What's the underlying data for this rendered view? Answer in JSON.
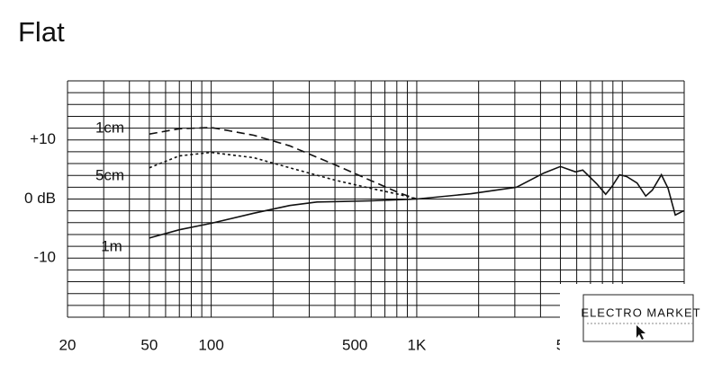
{
  "chart_data": {
    "type": "line",
    "title": "Flat",
    "xscale": "log",
    "xlim": [
      20,
      20000
    ],
    "ylim": [
      -20,
      20
    ],
    "xticks": [
      20,
      50,
      100,
      500,
      {
        "value": 1000,
        "label": "1K"
      },
      {
        "value": 5000,
        "label": "5"
      }
    ],
    "xgrid": [
      20,
      30,
      40,
      50,
      60,
      70,
      80,
      90,
      100,
      200,
      300,
      400,
      500,
      600,
      700,
      800,
      900,
      1000,
      2000,
      3000,
      4000,
      5000,
      6000,
      7000,
      8000,
      9000,
      10000,
      20000
    ],
    "yticks": [
      {
        "value": 10,
        "label": "+10"
      },
      {
        "value": 0,
        "label": "0 dB"
      },
      {
        "value": -10,
        "label": "-10"
      }
    ],
    "ygrid": [
      -20,
      -18,
      -16,
      -14,
      -12,
      -10,
      -8,
      -6,
      -4,
      -2,
      0,
      2,
      4,
      6,
      8,
      10,
      12,
      14,
      16,
      18,
      20
    ],
    "series": [
      {
        "name": "1cm",
        "color": "#111111",
        "style": "dashed",
        "x": [
          50,
          70,
          100,
          161,
          241,
          400,
          600,
          815,
          1000
        ],
        "values": [
          11,
          11.9,
          12.1,
          10.8,
          9.0,
          5.8,
          3.1,
          1.1,
          0
        ]
      },
      {
        "name": "5cm",
        "color": "#111111",
        "style": "dotted",
        "x": [
          50,
          70,
          100,
          161,
          241,
          400,
          600,
          815,
          1000
        ],
        "values": [
          5.3,
          7.3,
          7.9,
          7.0,
          5.3,
          3.2,
          1.8,
          0.8,
          0
        ]
      },
      {
        "name": "1m",
        "color": "#111111",
        "style": "solid",
        "x": [
          50,
          70,
          100,
          161,
          241,
          327,
          601,
          1000,
          1840,
          3060,
          4150,
          5000,
          5920,
          6420,
          7500,
          8300,
          8900,
          9700,
          10500,
          11800,
          13000,
          14000,
          15500,
          16700,
          18100,
          19600,
          20000
        ],
        "values": [
          -6.6,
          -5.2,
          -4.1,
          -2.4,
          -1.1,
          -0.5,
          -0.3,
          0,
          0.9,
          2.0,
          4.4,
          5.5,
          4.6,
          4.9,
          2.6,
          0.8,
          2.1,
          4.1,
          3.8,
          2.7,
          0.5,
          1.5,
          4.1,
          1.8,
          -2.7,
          -2.1,
          -2.0
        ]
      }
    ],
    "watermark": "ELECTRO MARKET"
  }
}
